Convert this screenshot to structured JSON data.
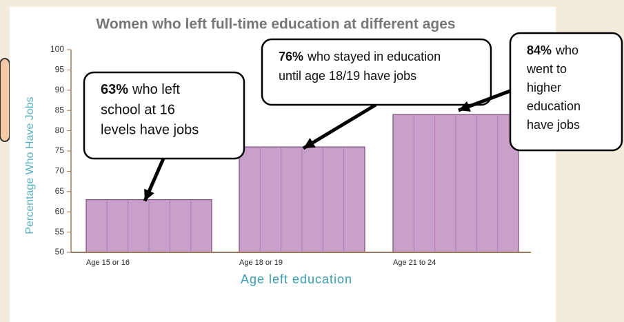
{
  "chart_data": {
    "type": "bar",
    "title": "Women who left full-time education at different ages",
    "y_label": "Percentage Who Have Jobs",
    "x_label": "Age left education",
    "categories": [
      "Age 15 or 16",
      "Age 18 or 19",
      "Age 21 to 24"
    ],
    "values": [
      63,
      76,
      84
    ],
    "color": "#c9a0c9",
    "ylim": [
      50,
      100
    ],
    "yticks": [
      50,
      55,
      60,
      65,
      70,
      75,
      80,
      85,
      90,
      95,
      100
    ],
    "annotations": [
      {
        "highlight": "63%",
        "lines": [
          "who left",
          "school at 16",
          "levels have jobs"
        ]
      },
      {
        "highlight": "76%",
        "lines": [
          "who stayed in education",
          "until age 18/19 have jobs"
        ]
      },
      {
        "highlight": "84%",
        "lines": [
          "who",
          "went to",
          "higher",
          "education",
          "have jobs"
        ]
      }
    ]
  }
}
